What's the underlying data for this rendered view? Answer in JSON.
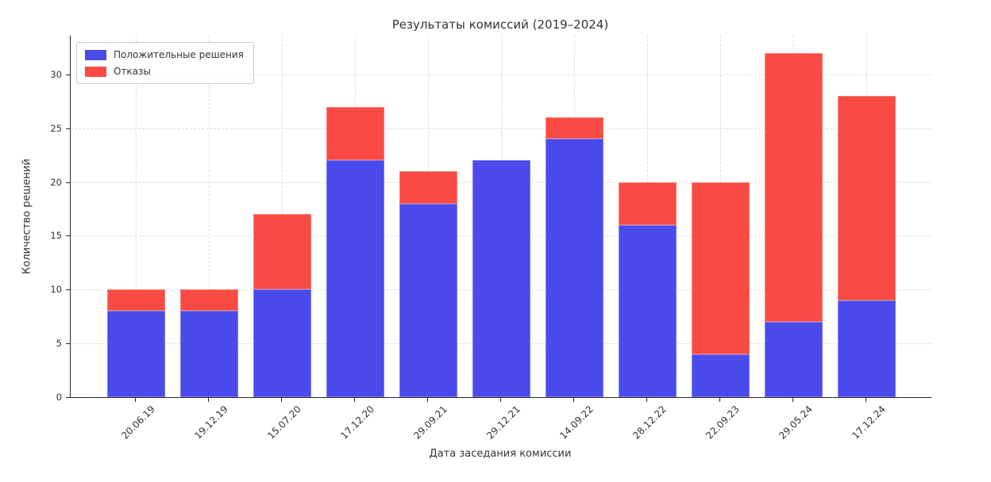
{
  "chart_data": {
    "type": "bar",
    "stacked": true,
    "title": "Результаты комиссий (2019–2024)",
    "xlabel": "Дата заседания комиссии",
    "ylabel": "Количество решений",
    "categories": [
      "20.06.19",
      "19.12.19",
      "15.07.20",
      "17.12.20",
      "29.09.21",
      "29.12.21",
      "14.09.22",
      "28.12.22",
      "22.09.23",
      "29.05.24",
      "17.12.24"
    ],
    "series": [
      {
        "name": "Положительные решения",
        "color": "#4B4BEB",
        "values": [
          8,
          8,
          10,
          22,
          18,
          22,
          24,
          16,
          4,
          7,
          9
        ]
      },
      {
        "name": "Отказы",
        "color": "#F94B44",
        "values": [
          2,
          2,
          7,
          5,
          3,
          0,
          2,
          4,
          16,
          25,
          19
        ]
      }
    ],
    "totals": [
      10,
      10,
      17,
      27,
      21,
      22,
      26,
      20,
      20,
      32,
      28
    ],
    "yticks": [
      0,
      5,
      10,
      15,
      20,
      25,
      30
    ],
    "ylim": [
      0,
      33.6
    ],
    "grid": true,
    "grid_style": "dashed",
    "legend_position": "upper left"
  },
  "appearance": {
    "grid_color": "#dcdcdc",
    "spine_color": "#262626",
    "text_color": "#333333",
    "background": "#ffffff"
  }
}
